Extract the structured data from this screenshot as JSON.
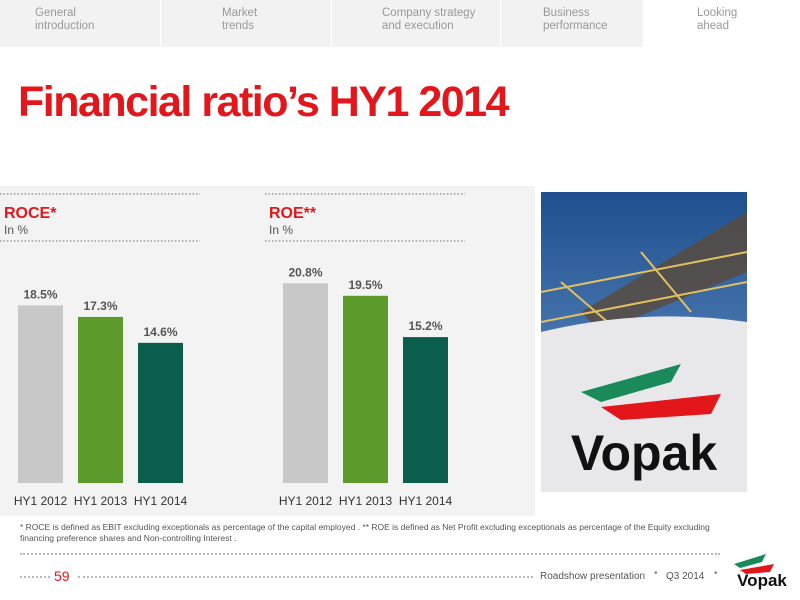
{
  "nav": {
    "tabs": [
      "General introduction",
      "Market trends",
      "Company strategy and execution",
      "Business performance",
      "Looking ahead"
    ]
  },
  "title": "Financial ratio’s HY1 2014",
  "chart_data": [
    {
      "type": "bar",
      "title": "ROCE*",
      "subtitle": "In %",
      "categories": [
        "HY1 2012",
        "HY1 2013",
        "HY1 2014"
      ],
      "values": [
        18.5,
        17.3,
        14.6
      ],
      "value_labels": [
        "18.5%",
        "17.3%",
        "14.6%"
      ],
      "colors": [
        "#c8c8c8",
        "#5c9b2b",
        "#0b5e4b"
      ]
    },
    {
      "type": "bar",
      "title": "ROE**",
      "subtitle": "In %",
      "categories": [
        "HY1 2012",
        "HY1 2013",
        "HY1 2014"
      ],
      "values": [
        20.8,
        19.5,
        15.2
      ],
      "value_labels": [
        "20.8%",
        "19.5%",
        "15.2%"
      ],
      "colors": [
        "#c8c8c8",
        "#5c9b2b",
        "#0b5e4b"
      ]
    }
  ],
  "photo": {
    "logo_text": "Vopak"
  },
  "footnote": "* ROCE  is defined as EBIT excluding exceptionals as percentage of the capital employed . ** ROE is defined as Net Profit excluding exceptionals as percentage of the Equity excluding financing preference shares and Non-controlling Interest .",
  "footer": {
    "page": "59",
    "presentation": "Roadshow presentation",
    "period": "Q3 2014",
    "logo": "Vopak"
  }
}
